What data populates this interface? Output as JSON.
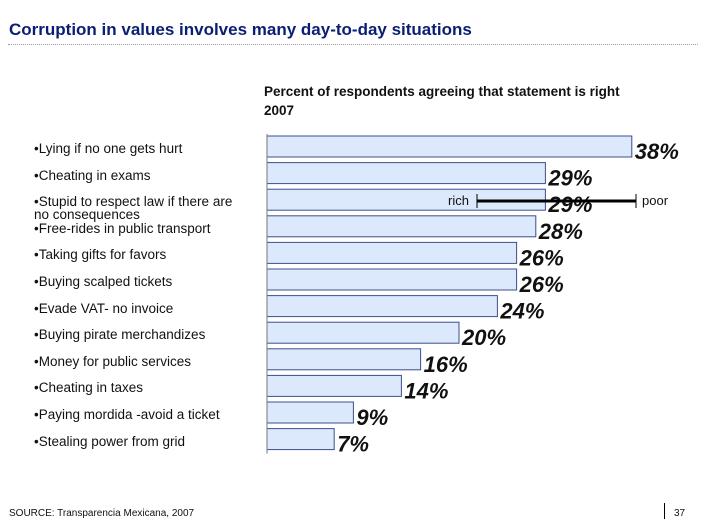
{
  "page": {
    "title": "Corruption in values involves many day-to-day situations",
    "source": "SOURCE: Transparencia Mexicana, 2007",
    "page_number": "37"
  },
  "chart_data": {
    "type": "bar",
    "orientation": "horizontal",
    "subtitle": "Percent of respondents agreeing that statement is right\n2007",
    "unit": "%",
    "categories": [
      "•Lying if no one gets hurt",
      "•Cheating in exams",
      "•Stupid to respect law if there are\nno consequences",
      "•Free-rides in public transport",
      "•Taking gifts for favors",
      "•Buying scalped tickets",
      "•Evade VAT- no invoice",
      "•Buying pirate merchandizes",
      "•Money for public services",
      "•Cheating in taxes",
      "•Paying mordida -avoid a ticket",
      "•Stealing power from grid"
    ],
    "values": [
      38,
      29,
      29,
      28,
      26,
      26,
      24,
      20,
      16,
      14,
      9,
      7
    ],
    "value_labels": [
      "38%",
      "29%",
      "29%",
      "28%",
      "26%",
      "26%",
      "24%",
      "20%",
      "16%",
      "14%",
      "9%",
      "7%"
    ],
    "annotation": {
      "left_label": "rich",
      "right_label": "poor"
    },
    "colors": {
      "bar_fill": "#dce8fb",
      "bar_stroke": "#3d4f8f",
      "title": "#0a1f73"
    },
    "grid": false,
    "legend": "none"
  }
}
